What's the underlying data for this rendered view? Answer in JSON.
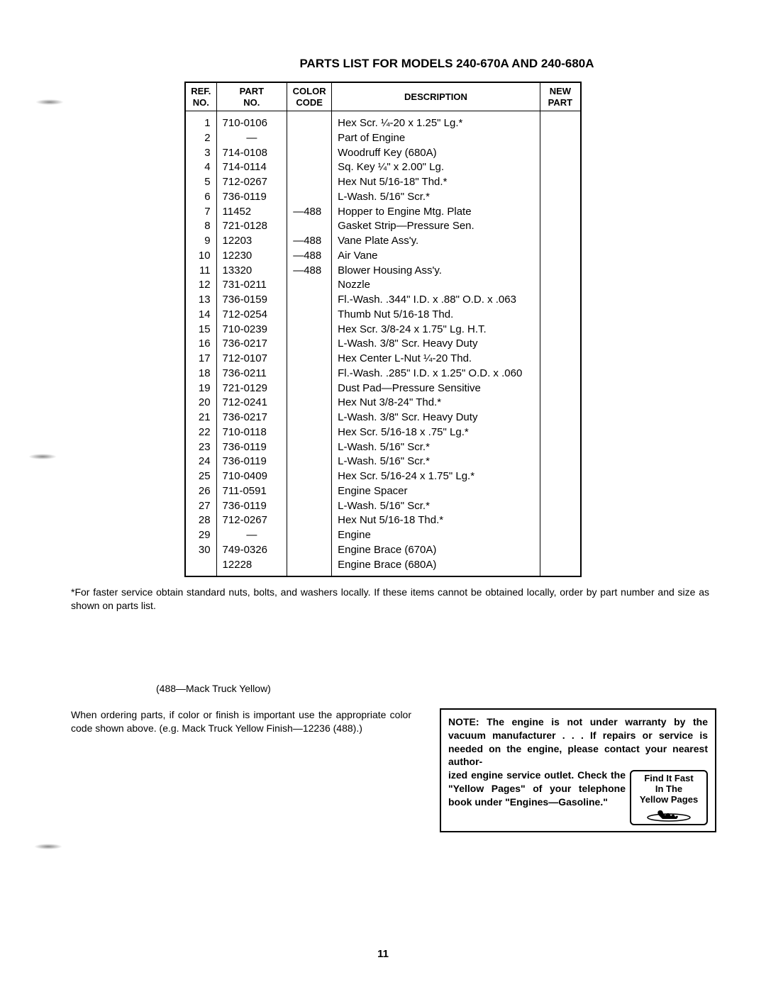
{
  "title": "PARTS LIST FOR MODELS 240-670A AND  240-680A",
  "columns": {
    "ref": "REF.\nNO.",
    "part": "PART\nNO.",
    "color": "COLOR\nCODE",
    "desc": "DESCRIPTION",
    "new": "NEW\nPART"
  },
  "rows": [
    {
      "ref": "1",
      "part": "710-0106",
      "color": "",
      "desc": "Hex Scr. ¼-20 x 1.25\" Lg.*"
    },
    {
      "ref": "2",
      "part": "—",
      "color": "",
      "desc": "Part of Engine"
    },
    {
      "ref": "3",
      "part": "714-0108",
      "color": "",
      "desc": "Woodruff Key (680A)"
    },
    {
      "ref": "4",
      "part": "714-0114",
      "color": "",
      "desc": "Sq. Key ¼\" x 2.00\" Lg."
    },
    {
      "ref": "5",
      "part": "712-0267",
      "color": "",
      "desc": "Hex Nut 5/16-18\" Thd.*"
    },
    {
      "ref": "6",
      "part": "736-0119",
      "color": "",
      "desc": "L-Wash. 5/16\" Scr.*"
    },
    {
      "ref": "7",
      "part": "11452",
      "color": "—488",
      "desc": "Hopper to Engine Mtg. Plate"
    },
    {
      "ref": "8",
      "part": "721-0128",
      "color": "",
      "desc": "Gasket Strip—Pressure Sen."
    },
    {
      "ref": "9",
      "part": "12203",
      "color": "—488",
      "desc": "Vane Plate Ass'y."
    },
    {
      "ref": "10",
      "part": "12230",
      "color": "—488",
      "desc": "Air Vane"
    },
    {
      "ref": "11",
      "part": "13320",
      "color": "—488",
      "desc": "Blower Housing Ass'y."
    },
    {
      "ref": "12",
      "part": "731-0211",
      "color": "",
      "desc": "Nozzle"
    },
    {
      "ref": "13",
      "part": "736-0159",
      "color": "",
      "desc": "Fl.-Wash.  .344\"  I.D.  x  .88\" O.D. x .063"
    },
    {
      "ref": "14",
      "part": "712-0254",
      "color": "",
      "desc": "Thumb Nut 5/16-18 Thd."
    },
    {
      "ref": "15",
      "part": "710-0239",
      "color": "",
      "desc": "Hex Scr. 3/8-24 x 1.75\" Lg. H.T."
    },
    {
      "ref": "16",
      "part": "736-0217",
      "color": "",
      "desc": "L-Wash. 3/8\" Scr. Heavy Duty"
    },
    {
      "ref": "17",
      "part": "712-0107",
      "color": "",
      "desc": "Hex Center L-Nut ¼-20 Thd."
    },
    {
      "ref": "18",
      "part": "736-0211",
      "color": "",
      "desc": "Fl.-Wash. .285\" I.D. x 1.25\" O.D. x .060"
    },
    {
      "ref": "19",
      "part": "721-0129",
      "color": "",
      "desc": "Dust Pad—Pressure Sensitive"
    },
    {
      "ref": "20",
      "part": "712-0241",
      "color": "",
      "desc": "Hex Nut 3/8-24\" Thd.*"
    },
    {
      "ref": "21",
      "part": "736-0217",
      "color": "",
      "desc": "L-Wash. 3/8\" Scr. Heavy Duty"
    },
    {
      "ref": "22",
      "part": "710-0118",
      "color": "",
      "desc": "Hex Scr. 5/16-18 x .75\" Lg.*"
    },
    {
      "ref": "23",
      "part": "736-0119",
      "color": "",
      "desc": "L-Wash. 5/16\" Scr.*"
    },
    {
      "ref": "24",
      "part": "736-0119",
      "color": "",
      "desc": "L-Wash. 5/16\" Scr.*"
    },
    {
      "ref": "25",
      "part": "710-0409",
      "color": "",
      "desc": "Hex Scr. 5/16-24 x 1.75\" Lg.*"
    },
    {
      "ref": "26",
      "part": "711-0591",
      "color": "",
      "desc": "Engine Spacer"
    },
    {
      "ref": "27",
      "part": "736-0119",
      "color": "",
      "desc": "L-Wash. 5/16\" Scr.*"
    },
    {
      "ref": "28",
      "part": "712-0267",
      "color": "",
      "desc": "Hex Nut 5/16-18 Thd.*"
    },
    {
      "ref": "29",
      "part": "—",
      "color": "",
      "desc": "Engine"
    },
    {
      "ref": "30",
      "part": "749-0326",
      "color": "",
      "desc": "Engine Brace (670A)"
    },
    {
      "ref": "",
      "part": "12228",
      "color": "",
      "desc": "Engine Brace (680A)"
    }
  ],
  "footnote": "*For faster service obtain standard nuts, bolts, and washers locally. If these items cannot be obtained locally, order by part number and size as shown on parts list.",
  "color_code_note": "(488—Mack Truck Yellow)",
  "ordering_note": "When ordering parts, if color or finish is important use the appropriate color code shown above. (e.g. Mack Truck Yellow Finish—12236 (488).)",
  "warranty_top": "NOTE: The engine is not under warranty by the vacuum manufacturer . . . If repairs or service is needed on the engine, please contact your nearest author-",
  "warranty_bottom": "ized engine service outlet. Check the \"Yellow Pages\" of your telephone book under \"Engines—Gasoline.\"",
  "yellow_pages": {
    "line1": "Find It Fast",
    "line2": "In The",
    "line3": "Yellow Pages"
  },
  "page_number": "11"
}
